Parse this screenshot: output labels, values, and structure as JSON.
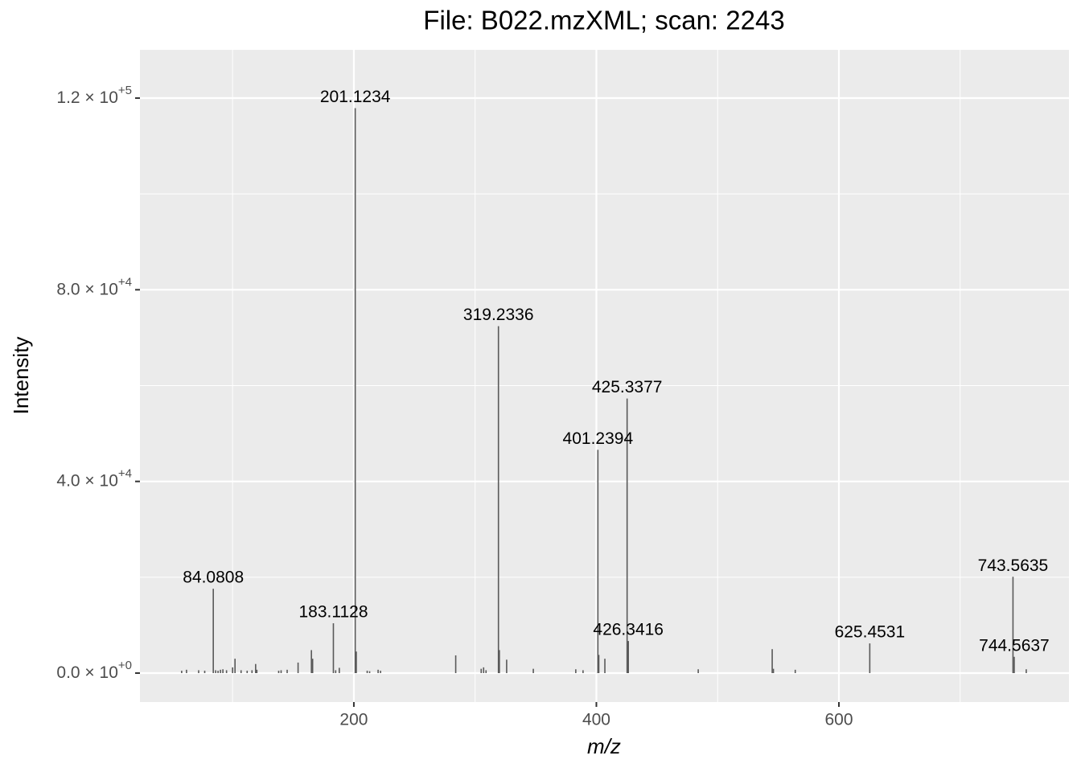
{
  "chart_data": {
    "type": "spectrum",
    "title": "File: B022.mzXML; scan: 2243",
    "x_label": "m/z",
    "y_label": "Intensity",
    "x": [
      58,
      62,
      72,
      77,
      84.0808,
      86,
      88,
      90,
      92,
      95,
      100,
      102,
      107,
      112,
      116,
      119,
      120,
      138,
      140,
      145,
      154,
      165,
      166,
      183.1128,
      185,
      188,
      201.1234,
      202,
      211,
      213,
      220,
      222,
      284,
      305,
      307,
      309,
      319.2336,
      320,
      326,
      348,
      383,
      389,
      401.2394,
      402,
      407,
      425.3377,
      426.3416,
      484,
      545,
      546,
      564,
      625.4531,
      743.5635,
      744.5637,
      754.5
    ],
    "values": [
      500,
      700,
      600,
      500,
      17600,
      600,
      500,
      700,
      800,
      600,
      1200,
      3000,
      600,
      500,
      600,
      1900,
      700,
      500,
      600,
      700,
      2200,
      4800,
      3000,
      10400,
      600,
      1100,
      117900,
      4500,
      500,
      400,
      700,
      500,
      3700,
      900,
      1200,
      600,
      72400,
      4800,
      2800,
      900,
      800,
      600,
      46600,
      3800,
      3000,
      57300,
      6700,
      800,
      5000,
      900,
      700,
      6200,
      20100,
      3400,
      800
    ],
    "label_indices": [
      4,
      23,
      26,
      36,
      42,
      45,
      46,
      51,
      52,
      53
    ],
    "color": "#595959",
    "xlim": [
      23.6,
      789.7
    ],
    "ylim": [
      -6038,
      130063
    ],
    "xticks": [
      200,
      400,
      600
    ],
    "xminorticks": [
      100,
      300,
      500,
      700
    ],
    "yticks": [
      {
        "value": 0,
        "label": "0.0 × 10",
        "exponent": "+0"
      },
      {
        "value": 40000,
        "label": "4.0 × 10",
        "exponent": "+4"
      },
      {
        "value": 80000,
        "label": "8.0 × 10",
        "exponent": "+4"
      },
      {
        "value": 120000,
        "label": "1.2 × 10",
        "exponent": "+5"
      }
    ],
    "yminorticks": [
      20000,
      60000,
      100000
    ],
    "grid": true
  }
}
